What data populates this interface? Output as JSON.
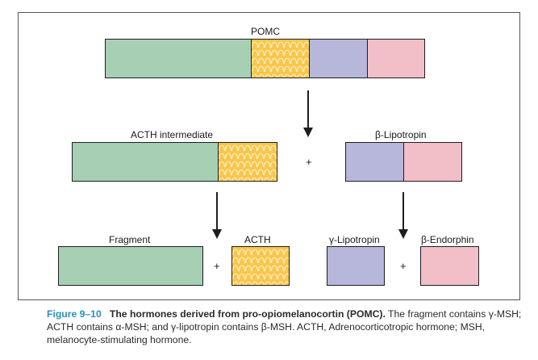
{
  "diagram": {
    "pomc_label": "POMC",
    "acth_intermediate_label": "ACTH intermediate",
    "beta_lipotropin_label": "β-Lipotropin",
    "fragment_label": "Fragment",
    "acth_label": "ACTH",
    "gamma_lipotropin_label": "γ-Lipotropin",
    "beta_endorphin_label": "β-Endorphin",
    "plus_sign": "+",
    "colors": {
      "green": "#a6cfb4",
      "gold": "#f9c64e",
      "blue": "#b6b7da",
      "pink": "#f2bfc8",
      "arrow": "#1e1e1e",
      "caption_accent": "#2a8ec4"
    }
  },
  "caption": {
    "figure_number": "Figure 9–10",
    "title": "The hormones derived from pro-opiomelanocortin (POMC).",
    "text": "The fragment contains γ-MSH; ACTH contains α-MSH; and γ-lipotropin contains β-MSH. ACTH, Adrenocorticotropic hormone; MSH, melanocyte-stimulating hormone."
  }
}
